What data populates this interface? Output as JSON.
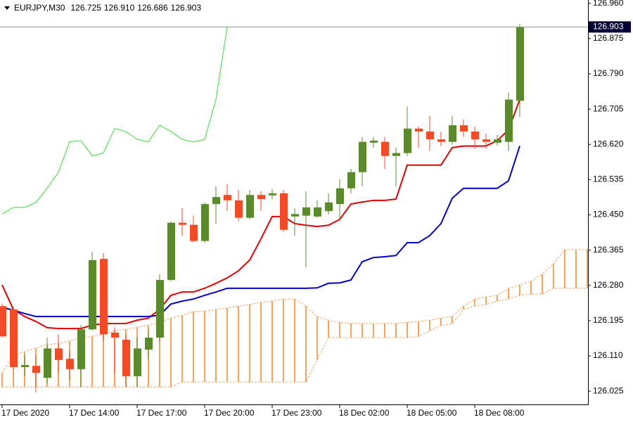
{
  "chart_data": {
    "type": "candlestick",
    "symbol": "EURJPY,M30",
    "quote": [
      {
        "value": 126.725,
        "label": "126.725"
      },
      {
        "value": 126.91,
        "label": "126.910"
      },
      {
        "value": 126.686,
        "label": "126.686"
      },
      {
        "value": 126.903,
        "label": "126.903"
      }
    ],
    "bid": {
      "value": 126.903,
      "label": "126.903"
    },
    "ylim": [
      125.993,
      126.968
    ],
    "yticks": [
      {
        "value": 126.96,
        "label": "126.960"
      },
      126.875,
      {
        "value": 126.79,
        "label": "126.790"
      },
      126.705,
      {
        "value": 126.62,
        "label": "126.620"
      },
      126.535,
      {
        "value": 126.45,
        "label": "126.450"
      },
      126.365,
      {
        "value": 126.28,
        "label": "126.280"
      },
      126.195,
      {
        "value": 126.11,
        "label": "126.110"
      },
      126.025
    ],
    "grid": false,
    "up_color": "#5a8a2c",
    "down_color": "#f04a26",
    "categories": [
      "17 Dec 2020",
      null,
      null,
      null,
      null,
      null,
      "17 Dec 14:00",
      null,
      null,
      null,
      null,
      null,
      "17 Dec 17:00",
      null,
      null,
      null,
      null,
      null,
      "17 Dec 20:00",
      null,
      null,
      null,
      null,
      null,
      "17 Dec 23:00",
      null,
      null,
      null,
      null,
      null,
      "18 Dec 02:00",
      null,
      null,
      null,
      null,
      null,
      "18 Dec 05:00",
      null,
      null,
      null,
      null,
      null,
      "18 Dec 08:00",
      null,
      null,
      null,
      null,
      null,
      null,
      null,
      null,
      null,
      null
    ],
    "open": [
      126.23,
      126.222,
      126.083,
      126.086,
      126.057,
      126.128,
      126.103,
      126.078,
      126.174,
      126.344,
      126.166,
      126.149,
      126.061,
      126.125,
      126.154,
      126.293,
      126.431,
      126.426,
      126.387,
      126.476,
      126.498,
      126.485,
      126.443,
      126.498,
      126.497,
      126.502,
      126.446,
      126.448,
      126.446,
      126.459,
      126.476,
      126.514,
      126.553,
      126.624,
      126.626,
      126.592,
      126.599,
      126.658,
      126.651,
      126.632,
      126.626,
      126.666,
      126.651,
      126.632,
      126.624,
      126.626,
      126.725,
      null,
      null,
      null,
      null,
      null,
      null
    ],
    "high": [
      126.236,
      126.227,
      126.112,
      126.112,
      126.154,
      126.162,
      126.123,
      126.184,
      126.361,
      126.358,
      126.179,
      126.162,
      126.154,
      126.174,
      126.307,
      126.434,
      126.466,
      126.448,
      126.48,
      126.519,
      126.524,
      126.51,
      126.51,
      126.507,
      126.512,
      126.51,
      126.466,
      126.507,
      126.485,
      126.502,
      126.536,
      126.561,
      126.638,
      126.638,
      126.638,
      126.612,
      126.711,
      126.663,
      126.689,
      126.65,
      126.689,
      126.68,
      126.663,
      126.646,
      126.643,
      126.745,
      126.91,
      null,
      null,
      null,
      null,
      null,
      null
    ],
    "low": [
      126.155,
      126.078,
      126.061,
      126.022,
      126.044,
      126.069,
      126.052,
      126.035,
      126.171,
      126.145,
      126.069,
      126.035,
      126.035,
      126.103,
      126.145,
      126.29,
      126.4,
      126.383,
      126.383,
      126.429,
      126.459,
      126.434,
      126.439,
      126.459,
      126.488,
      126.409,
      126.4,
      126.324,
      126.443,
      126.451,
      126.439,
      126.502,
      126.519,
      126.612,
      126.561,
      126.519,
      126.592,
      126.612,
      126.604,
      126.615,
      126.62,
      126.638,
      126.609,
      126.609,
      126.617,
      126.604,
      126.686,
      null,
      null,
      null,
      null,
      null,
      null
    ],
    "close": [
      126.157,
      126.083,
      126.088,
      126.069,
      126.128,
      126.1,
      126.078,
      126.174,
      126.341,
      126.162,
      126.154,
      126.061,
      126.128,
      126.154,
      126.293,
      126.431,
      126.426,
      126.387,
      126.476,
      126.493,
      126.485,
      126.443,
      126.498,
      126.488,
      126.502,
      126.414,
      126.452,
      126.468,
      126.468,
      126.48,
      126.514,
      126.553,
      126.626,
      126.629,
      126.592,
      126.599,
      126.658,
      126.651,
      126.632,
      126.626,
      126.666,
      126.651,
      126.632,
      126.626,
      126.632,
      126.728,
      126.903,
      null,
      null,
      null,
      null,
      null,
      null
    ],
    "lines": [
      {
        "color": "#e00000",
        "values": [
          126.281,
          126.222,
          126.205,
          126.193,
          126.178,
          126.176,
          126.176,
          126.176,
          126.184,
          126.188,
          126.188,
          126.188,
          126.196,
          126.201,
          126.222,
          126.256,
          126.264,
          126.264,
          126.273,
          126.285,
          126.298,
          126.315,
          126.341,
          126.392,
          126.446,
          126.446,
          126.429,
          126.425,
          126.422,
          126.425,
          126.439,
          126.476,
          126.481,
          126.485,
          126.485,
          126.488,
          126.57,
          126.57,
          126.57,
          126.57,
          126.612,
          126.616,
          126.616,
          126.616,
          126.629,
          126.655,
          126.728,
          null,
          null,
          null,
          null,
          null,
          null
        ]
      },
      {
        "color": "#0000cc",
        "values": [
          126.227,
          126.22,
          126.212,
          126.205,
          126.205,
          126.205,
          126.205,
          126.205,
          126.205,
          126.205,
          126.205,
          126.205,
          126.205,
          126.205,
          126.208,
          126.235,
          126.242,
          126.247,
          126.256,
          126.264,
          126.273,
          126.273,
          126.273,
          126.273,
          126.273,
          126.273,
          126.273,
          126.273,
          126.274,
          126.285,
          126.286,
          126.293,
          126.337,
          126.347,
          126.349,
          126.352,
          126.383,
          126.383,
          126.4,
          126.429,
          126.49,
          126.514,
          126.514,
          126.514,
          126.514,
          126.532,
          126.616,
          null,
          null,
          null,
          null,
          null,
          null
        ]
      },
      {
        "color": "#33dd33",
        "values": [
          126.452,
          126.468,
          126.468,
          126.48,
          126.514,
          126.553,
          126.626,
          126.629,
          126.592,
          126.599,
          126.658,
          126.651,
          126.632,
          126.626,
          126.666,
          126.651,
          126.632,
          126.626,
          126.632,
          126.728,
          126.903,
          null,
          null,
          null,
          null,
          null,
          null,
          null,
          null,
          null,
          null,
          null,
          null,
          null,
          null,
          null,
          null,
          null,
          null,
          null,
          null,
          null,
          null,
          null,
          null,
          null,
          null,
          null,
          null,
          null,
          null,
          null,
          null
        ]
      }
    ],
    "cloud": {
      "color": "#f4a460",
      "span_a": [
        126.069,
        126.112,
        126.12,
        126.129,
        126.137,
        126.14,
        126.146,
        126.154,
        126.157,
        126.162,
        126.171,
        126.174,
        126.179,
        126.184,
        126.191,
        126.201,
        126.208,
        126.217,
        126.218,
        126.222,
        126.225,
        126.23,
        126.234,
        126.239,
        126.242,
        126.247,
        126.247,
        126.23,
        126.205,
        126.196,
        126.191,
        126.188,
        126.188,
        126.188,
        126.188,
        126.188,
        126.191,
        126.193,
        126.196,
        126.201,
        126.205,
        126.23,
        126.247,
        126.252,
        126.256,
        126.273,
        126.281,
        126.29,
        126.307,
        126.332,
        126.366,
        126.366,
        126.366
      ],
      "span_b": [
        126.035,
        126.035,
        126.035,
        126.035,
        126.035,
        126.035,
        126.035,
        126.035,
        126.035,
        126.035,
        126.035,
        126.035,
        126.035,
        126.035,
        126.035,
        126.035,
        126.047,
        126.047,
        126.047,
        126.047,
        126.047,
        126.047,
        126.047,
        126.047,
        126.047,
        126.047,
        126.047,
        126.047,
        126.1,
        126.154,
        126.154,
        126.154,
        126.154,
        126.154,
        126.154,
        126.154,
        126.154,
        126.157,
        126.171,
        126.183,
        126.188,
        126.222,
        126.23,
        126.234,
        126.242,
        126.247,
        126.256,
        126.259,
        126.259,
        126.273,
        126.273,
        126.273,
        126.273
      ]
    }
  }
}
